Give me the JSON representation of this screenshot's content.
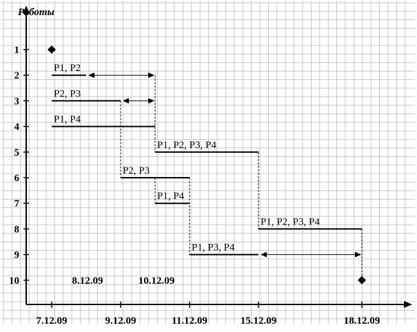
{
  "chart_data": {
    "type": "gantt",
    "ylabel": "Работы",
    "y_ticks": [
      "1",
      "2",
      "3",
      "4",
      "5",
      "6",
      "7",
      "8",
      "9",
      "10"
    ],
    "x_tick_labels": [
      "7.12.09",
      "9.12.09",
      "11.12.09",
      "15.12.09",
      "18.12.09"
    ],
    "x_tick_positions": [
      0,
      2,
      4,
      6,
      9
    ],
    "x_range": [
      0,
      9
    ],
    "annotations": [
      {
        "text": "8.12.09",
        "x": 1,
        "y": 10
      },
      {
        "text": "10.12.09",
        "x": 3,
        "y": 10
      }
    ],
    "milestones": [
      {
        "y": 1,
        "x": 0
      },
      {
        "y": 10,
        "x": 9
      }
    ],
    "tasks": [
      {
        "y": 2,
        "start": 0,
        "end": 1,
        "label": "P1, P2",
        "slack_end": 3
      },
      {
        "y": 3,
        "start": 0,
        "end": 2,
        "label": "P2, P3",
        "slack_end": 3
      },
      {
        "y": 4,
        "start": 0,
        "end": 3,
        "label": "P1, P4"
      },
      {
        "y": 5,
        "start": 3,
        "end": 6,
        "label": "P1, P2, P3, P4"
      },
      {
        "y": 6,
        "start": 2,
        "end": 4,
        "label": "P2, P3"
      },
      {
        "y": 7,
        "start": 3,
        "end": 4,
        "label": "P1, P4"
      },
      {
        "y": 8,
        "start": 6,
        "end": 9,
        "label": "P1, P2, P3, P4"
      },
      {
        "y": 9,
        "start": 4,
        "end": 6,
        "label": "P1, P3, P4",
        "slack_end": 9
      }
    ],
    "dependency_lines": [
      {
        "x": 3,
        "from_y": 2,
        "to_y": 5
      },
      {
        "x": 2,
        "from_y": 3,
        "to_y": 6
      },
      {
        "x": 3,
        "from_y": 6,
        "to_y": 7
      },
      {
        "x": 4,
        "from_y": 6,
        "to_y": 9
      },
      {
        "x": 6,
        "from_y": 5,
        "to_y": 8
      },
      {
        "x": 9,
        "from_y": 8,
        "to_y": 10
      }
    ],
    "grid": true
  }
}
